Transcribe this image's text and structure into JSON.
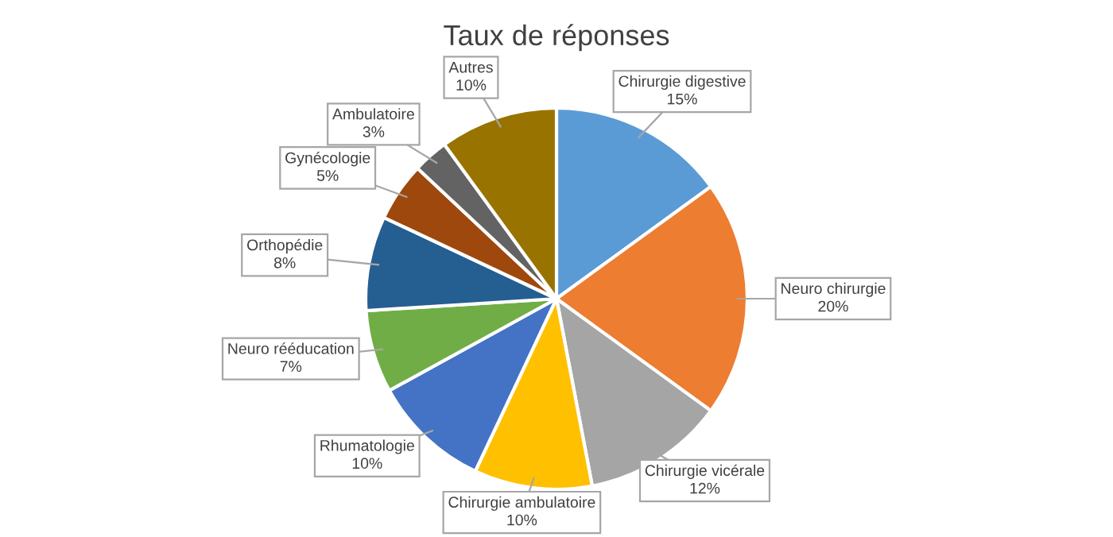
{
  "chart_data": {
    "type": "pie",
    "title": "Taux de réponses",
    "categories": [
      "Chirurgie digestive",
      "Neuro chirurgie",
      "Chirurgie vicérale",
      "Chirurgie ambulatoire",
      "Rhumatologie",
      "Neuro rééducation",
      "Orthopédie",
      "Gynécologie",
      "Ambulatoire",
      "Autres"
    ],
    "values": [
      15,
      20,
      12,
      10,
      10,
      7,
      8,
      5,
      3,
      10
    ],
    "value_labels": [
      "15%",
      "20%",
      "12%",
      "10%",
      "10%",
      "7%",
      "8%",
      "5%",
      "3%",
      "10%"
    ],
    "colors": [
      "#5b9bd5",
      "#ed7d31",
      "#a5a5a5",
      "#ffc000",
      "#4472c4",
      "#70ad47",
      "#255e91",
      "#9e480e",
      "#636363",
      "#997300"
    ],
    "legend": false
  }
}
